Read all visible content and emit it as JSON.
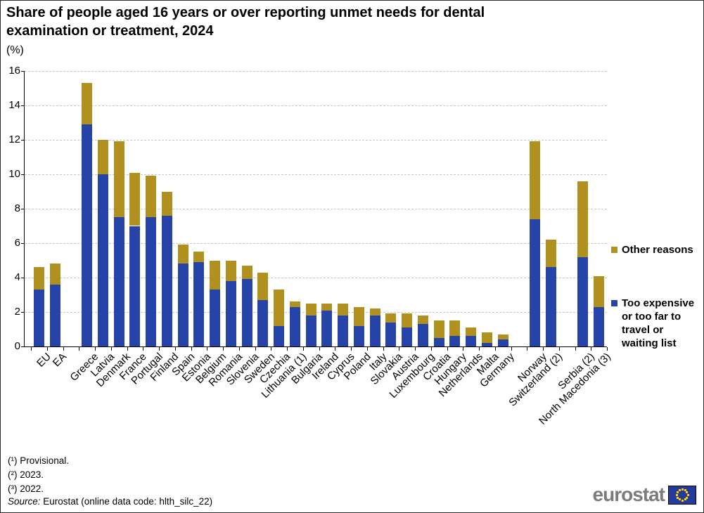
{
  "title": "Share of people aged 16 years or over reporting unmet needs for dental examination or treatment, 2024",
  "unit_label": "(%)",
  "chart_data": {
    "type": "bar",
    "stacked": true,
    "title": "Share of people aged 16 years or over reporting unmet needs for dental examination or treatment, 2024",
    "ylabel": "(%)",
    "xlabel": "",
    "ylim": [
      0,
      16
    ],
    "ytick_interval": 2,
    "grid": "horizontal dashed",
    "legend_position": "right",
    "categories": [
      "EU",
      "EA",
      "Greece",
      "Latvia",
      "Denmark",
      "France",
      "Portugal",
      "Finland",
      "Spain",
      "Estonia",
      "Belgium",
      "Romania",
      "Slovenia",
      "Sweden",
      "Czechia",
      "Lithuania (1)",
      "Bulgaria",
      "Ireland",
      "Cyprus",
      "Poland",
      "Italy",
      "Slovakia",
      "Austria",
      "Luxembourg",
      "Croatia",
      "Hungary",
      "Netherlands",
      "Malta",
      "Germany",
      "Norway",
      "Switzerland (2)",
      "Serbia (2)",
      "North Macedonia (3)"
    ],
    "gaps_before": [
      "Greece",
      "Norway",
      "Serbia (2)"
    ],
    "series": [
      {
        "name": "Too expensive or too far to travel or waiting list",
        "color": "#2644A7",
        "values": [
          3.3,
          3.6,
          12.9,
          10.0,
          7.5,
          7.0,
          7.5,
          7.6,
          4.8,
          4.9,
          3.3,
          3.8,
          3.9,
          2.7,
          1.2,
          2.3,
          1.8,
          2.1,
          1.8,
          1.2,
          1.8,
          1.4,
          1.1,
          1.3,
          0.5,
          0.6,
          0.6,
          0.2,
          0.4,
          7.4,
          4.6,
          5.2,
          2.3
        ]
      },
      {
        "name": "Other reasons",
        "color": "#B09120",
        "values": [
          1.3,
          1.2,
          2.4,
          2.0,
          4.4,
          3.1,
          2.4,
          1.4,
          1.1,
          0.6,
          1.7,
          1.2,
          0.8,
          1.6,
          2.1,
          0.3,
          0.7,
          0.4,
          0.7,
          1.1,
          0.4,
          0.5,
          0.8,
          0.5,
          1.0,
          0.9,
          0.5,
          0.6,
          0.3,
          4.5,
          1.6,
          4.4,
          1.8
        ]
      }
    ]
  },
  "legend": {
    "other_reasons_label": "Other reasons",
    "too_expensive_label": "Too expensive or too far to travel or waiting list"
  },
  "footnotes": [
    "(¹) Provisional.",
    "(²) 2023.",
    "(³) 2022."
  ],
  "source": {
    "prefix": "Source:",
    "rest": " Eurostat (online data code: hlth_silc_22)"
  },
  "logo": {
    "text": "eurostat"
  },
  "colors": {
    "bar_blue": "#2644A7",
    "bar_gold": "#B09120",
    "gridline": "#c6c6c6",
    "logo_gray": "#7b7b7b",
    "flag_blue": "#233C9B",
    "flag_star_yellow": "#FFCC00"
  }
}
